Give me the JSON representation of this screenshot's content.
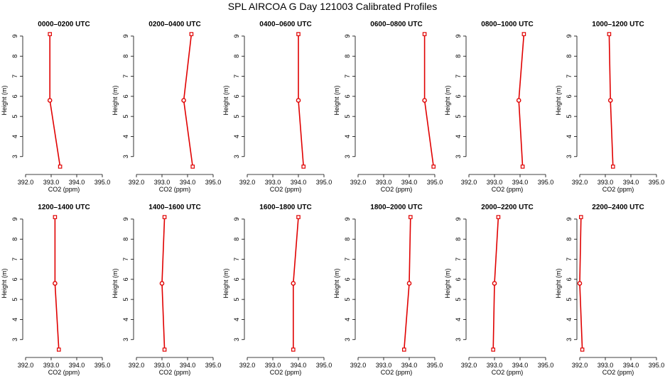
{
  "title": "SPL AIRCOA G  Day 121003  Calibrated Profiles",
  "chart_data": {
    "type": "line",
    "xlabel": "CO2 (ppm)",
    "ylabel": "Height (m)",
    "xlim": [
      392.0,
      395.0
    ],
    "ylim": [
      2.25,
      9.35
    ],
    "x_ticks": [
      "392.0",
      "393.0",
      "394.0",
      "395.0"
    ],
    "y_ticks": [
      "3",
      "4",
      "5",
      "6",
      "7",
      "8",
      "9"
    ],
    "colors": {
      "line": "#e00000",
      "axis": "#000000"
    },
    "panels": [
      {
        "title": "0000–0200 UTC",
        "heights": [
          2.5,
          5.8,
          9.1
        ],
        "co2": [
          393.35,
          392.95,
          392.95
        ]
      },
      {
        "title": "0200–0400 UTC",
        "heights": [
          2.5,
          5.8,
          9.1
        ],
        "co2": [
          394.2,
          393.85,
          394.15
        ]
      },
      {
        "title": "0400–0600 UTC",
        "heights": [
          2.5,
          5.8,
          9.1
        ],
        "co2": [
          394.2,
          394.0,
          394.0
        ]
      },
      {
        "title": "0600–0800 UTC",
        "heights": [
          2.5,
          5.8,
          9.1
        ],
        "co2": [
          394.95,
          394.6,
          394.6
        ]
      },
      {
        "title": "0800–1000 UTC",
        "heights": [
          2.5,
          5.8,
          9.1
        ],
        "co2": [
          394.1,
          393.95,
          394.15
        ]
      },
      {
        "title": "1000–1200 UTC",
        "heights": [
          2.5,
          5.8,
          9.1
        ],
        "co2": [
          393.3,
          393.2,
          393.15
        ]
      },
      {
        "title": "1200–1400 UTC",
        "heights": [
          2.5,
          5.8,
          9.1
        ],
        "co2": [
          393.3,
          393.15,
          393.15
        ]
      },
      {
        "title": "1400–1600 UTC",
        "heights": [
          2.5,
          5.8,
          9.1
        ],
        "co2": [
          393.1,
          393.0,
          393.1
        ]
      },
      {
        "title": "1600–1800 UTC",
        "heights": [
          2.5,
          5.8,
          9.1
        ],
        "co2": [
          393.8,
          393.8,
          394.0
        ]
      },
      {
        "title": "1800–2000 UTC",
        "heights": [
          2.5,
          5.8,
          9.1
        ],
        "co2": [
          393.8,
          394.0,
          394.05
        ]
      },
      {
        "title": "2000–2200 UTC",
        "heights": [
          2.5,
          5.8,
          9.1
        ],
        "co2": [
          392.95,
          393.0,
          393.15
        ]
      },
      {
        "title": "2200–2400 UTC",
        "heights": [
          2.5,
          5.8,
          9.1
        ],
        "co2": [
          392.1,
          392.0,
          392.05
        ]
      }
    ]
  }
}
